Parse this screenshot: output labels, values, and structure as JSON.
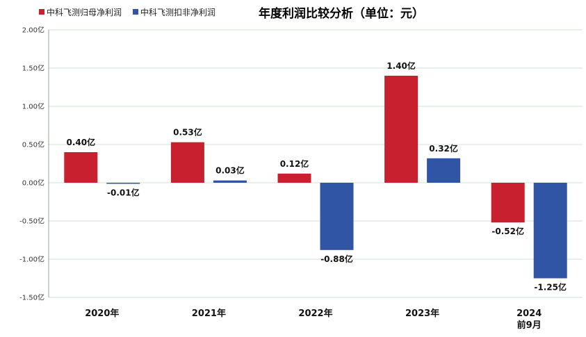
{
  "chart_data": {
    "type": "bar",
    "title": "年度利润比较分析（单位：元）",
    "categories": [
      [
        "2020年"
      ],
      [
        "2021年"
      ],
      [
        "2022年"
      ],
      [
        "2023年"
      ],
      [
        "2024",
        "前9月"
      ]
    ],
    "series": [
      {
        "name": "中科飞测归母净利润",
        "color": "#c8202f",
        "values": [
          0.4,
          0.53,
          0.12,
          1.4,
          -0.52
        ],
        "labels": [
          "0.40亿",
          "0.53亿",
          "0.12亿",
          "1.40亿",
          "-0.52亿"
        ]
      },
      {
        "name": "中科飞测扣非净利润",
        "color": "#2f55a4",
        "values": [
          -0.01,
          0.03,
          -0.88,
          0.32,
          -1.25
        ],
        "labels": [
          "-0.01亿",
          "0.03亿",
          "-0.88亿",
          "0.32亿",
          "-1.25亿"
        ]
      }
    ],
    "ylim": [
      -1.5,
      2.0
    ],
    "yticks": [
      2.0,
      1.5,
      1.0,
      0.5,
      0.0,
      -0.5,
      -1.0,
      -1.5
    ],
    "ytick_labels": [
      "2.00亿",
      "1.50亿",
      "1.00亿",
      "0.50亿",
      "0.00亿",
      "-0.50亿",
      "-1.00亿",
      "-1.50亿"
    ],
    "grid": true,
    "legend": "top-left"
  }
}
